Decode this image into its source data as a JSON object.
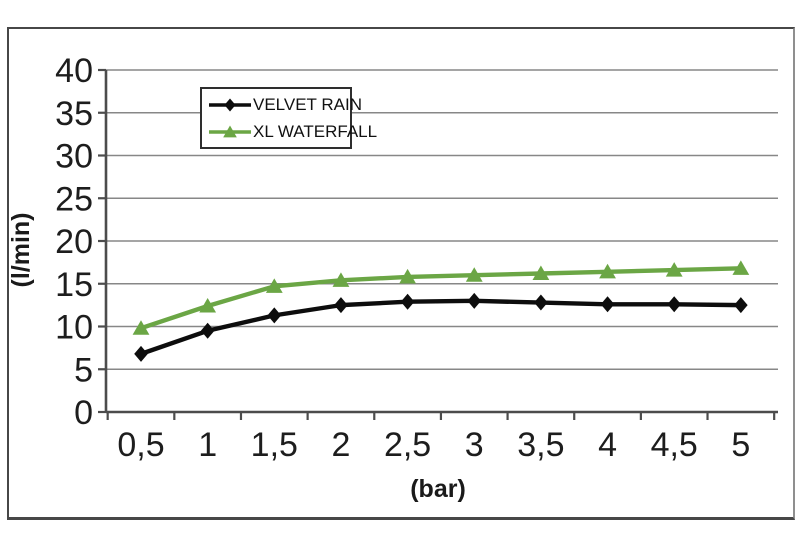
{
  "chart_data": {
    "type": "line",
    "title": "",
    "xlabel": "(bar)",
    "ylabel": "(l/min)",
    "x_tick_labels": [
      "0,5",
      "1",
      "1,5",
      "2",
      "2,5",
      "3",
      "3,5",
      "4",
      "4,5",
      "5"
    ],
    "x_values": [
      0.5,
      1,
      1.5,
      2,
      2.5,
      3,
      3.5,
      4,
      4.5,
      5
    ],
    "y_ticks": [
      0,
      5,
      10,
      15,
      20,
      25,
      30,
      35,
      40
    ],
    "ylim": [
      0,
      40
    ],
    "grid": true,
    "legend_position": "top-center-inside",
    "series": [
      {
        "name": "VELVET RAIN",
        "color": "#0d0d0d",
        "marker": "diamond",
        "values": [
          6.8,
          9.5,
          11.3,
          12.5,
          12.9,
          13.0,
          12.8,
          12.6,
          12.6,
          12.5
        ]
      },
      {
        "name": "XL WATERFALL",
        "color": "#6BA645",
        "marker": "triangle",
        "values": [
          9.8,
          12.4,
          14.7,
          15.4,
          15.8,
          16.0,
          16.2,
          16.4,
          16.6,
          16.8
        ]
      }
    ]
  },
  "colors": {
    "background": "#ffffff",
    "frame_border": "#474747",
    "gridline": "#878787",
    "axis": "#4c4c4c",
    "tick_label": "#1d1d1d",
    "axis_title": "#1a1a1a",
    "legend_border": "#2e2e2e",
    "legend_text": "#111111"
  }
}
